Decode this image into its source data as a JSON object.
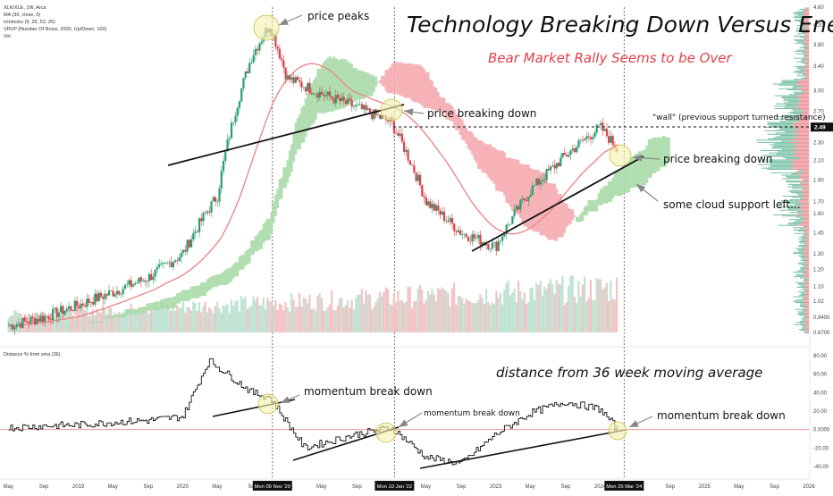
{
  "legend": {
    "symbol": "XLK/XLE, 1W, Arca",
    "ma": "MA (36, close, 0)",
    "ichimoku": "Ichimoku (9, 26, 52, 26)",
    "vrvp": "VRVP (Number Of Rows, 2000, Up/Down, 100)",
    "vol": "Vol",
    "osc": "Distance % from sma (36)"
  },
  "titles": {
    "main": "Technology Breaking Down Versus Energy",
    "sub": "Bear Market Rally Seems to be Over"
  },
  "annotations": {
    "price_peaks": "price peaks",
    "price_breaking_down_1": "price breaking down",
    "wall": "\"wall\" (previous support turned resistance)",
    "price_breaking_down_2": "price breaking down",
    "cloud_support": "some cloud support left...",
    "distance": "distance from 36 week moving average",
    "momentum_1": "momentum break down",
    "momentum_2": "momentum break down",
    "momentum_3": "momentum break down"
  },
  "x_axis": {
    "ticks": [
      "May",
      "Sep",
      "2019",
      "May",
      "Sep",
      "2020",
      "May",
      "Sep",
      "2021",
      "May",
      "Sep",
      "2022",
      "May",
      "Sep",
      "2023",
      "May",
      "Sep",
      "2024",
      "May",
      "Sep",
      "2025",
      "May",
      "Sep",
      "2026"
    ],
    "date_badges": [
      "Mon 09 Nov '20",
      "Mon 10 Jan '22",
      "Mon 25 Mar '24"
    ]
  },
  "price_axis": {
    "ticks": [
      "4.60",
      "4.20",
      "3.80",
      "3.40",
      "3.00",
      "2.70",
      "2.30",
      "2.10",
      "1.90",
      "1.70",
      "1.60",
      "1.45",
      "1.30",
      "1.20",
      "1.10",
      "1.02",
      "0.9400",
      "0.8700"
    ],
    "current_value": "2.49",
    "scale": "log"
  },
  "osc_axis": {
    "ticks": [
      "80.00",
      "60.00",
      "40.00",
      "20.00",
      "0.0000",
      "-20.00",
      "-40.00"
    ]
  },
  "colors": {
    "up": "#2a9d6e",
    "down": "#e0404a",
    "ma_line": "#e98a8a",
    "cloud_bull": "#a7d9a7",
    "cloud_bear": "#f5a8ad",
    "highlight": "#f3f1b0",
    "vol_up": "#bfe3d3",
    "vol_down": "#f4c2c4"
  },
  "chart_data": {
    "type": "line",
    "title": "Technology Breaking Down Versus Energy",
    "y_scale": "log",
    "ylim": [
      0.87,
      4.6
    ],
    "x": [
      "2018-05",
      "2018-09",
      "2019-01",
      "2019-05",
      "2019-09",
      "2020-01",
      "2020-05",
      "2020-09",
      "2020-11",
      "2021-01",
      "2021-05",
      "2021-09",
      "2022-01",
      "2022-05",
      "2022-09",
      "2023-01",
      "2023-05",
      "2023-09",
      "2024-01",
      "2024-03"
    ],
    "series": [
      {
        "values": [
          0.9,
          0.94,
          1.0,
          1.07,
          1.15,
          1.3,
          1.75,
          3.6,
          4.2,
          3.2,
          2.95,
          2.75,
          2.55,
          1.7,
          1.45,
          1.35,
          1.8,
          2.15,
          2.49,
          2.22
        ]
      }
    ],
    "oscillator": {
      "ylim": [
        -40,
        80
      ],
      "x": [
        "2018-05",
        "2018-09",
        "2019-01",
        "2019-05",
        "2019-09",
        "2020-01",
        "2020-04",
        "2020-09",
        "2020-11",
        "2021-03",
        "2021-09",
        "2022-01",
        "2022-05",
        "2022-09",
        "2023-01",
        "2023-05",
        "2023-09",
        "2024-01",
        "2024-03"
      ],
      "values": [
        2,
        4,
        5,
        8,
        10,
        14,
        75,
        40,
        35,
        -20,
        -5,
        2,
        -30,
        -37,
        -5,
        18,
        30,
        22,
        0
      ]
    }
  }
}
